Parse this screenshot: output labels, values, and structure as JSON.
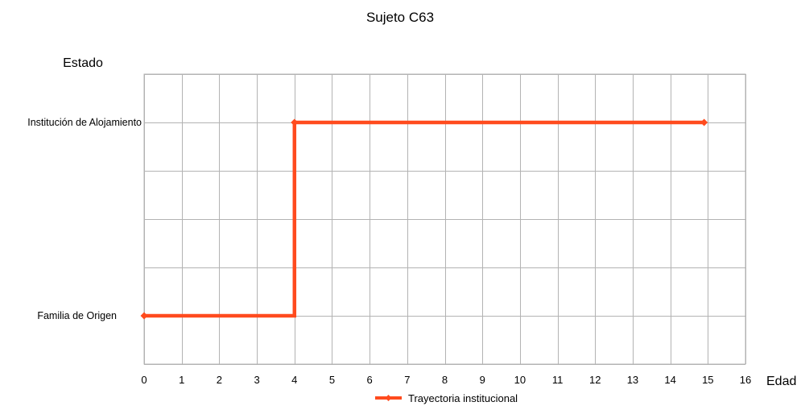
{
  "chart_data": {
    "type": "line",
    "title": "Sujeto C63",
    "xlabel": "Edad",
    "ylabel": "Estado",
    "xlim": [
      0,
      16
    ],
    "x_ticks": [
      "0",
      "1",
      "2",
      "3",
      "4",
      "5",
      "6",
      "7",
      "8",
      "9",
      "10",
      "11",
      "12",
      "13",
      "14",
      "15",
      "16"
    ],
    "y_categories": [
      "Familia de Origen",
      "Institución de Alojamiento"
    ],
    "grid": true,
    "legend_position": "bottom",
    "series": [
      {
        "name": "Trayectoria institucional",
        "color": "#FF4B1E",
        "step": true,
        "points": [
          {
            "x": 0,
            "y": "Familia de Origen"
          },
          {
            "x": 4,
            "y": "Familia de Origen"
          },
          {
            "x": 4,
            "y": "Institución de Alojamiento"
          },
          {
            "x": 14.9,
            "y": "Institución de Alojamiento"
          }
        ],
        "markers_at_x": [
          0,
          4,
          14.9
        ]
      }
    ]
  }
}
